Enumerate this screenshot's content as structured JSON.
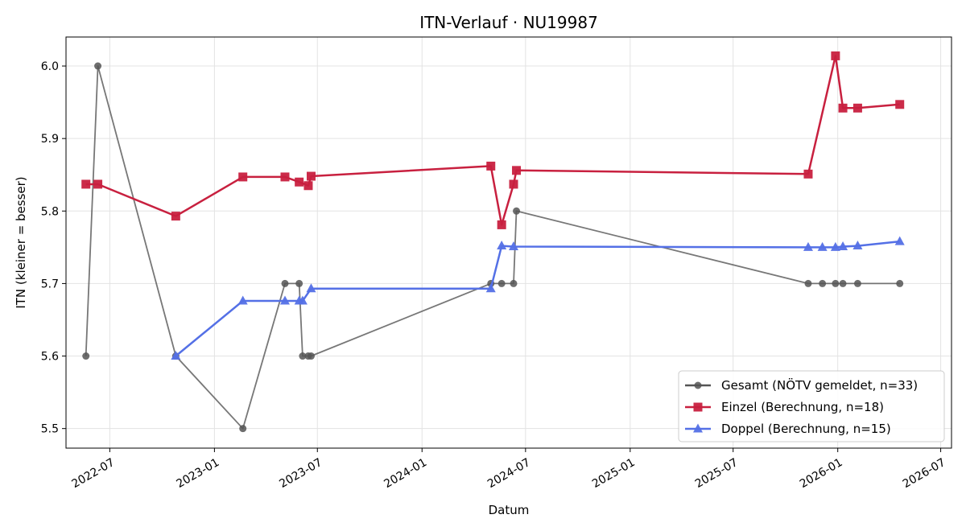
{
  "chart_data": {
    "type": "line",
    "title": "ITN-Verlauf · NU19987",
    "xlabel": "Datum",
    "ylabel": "ITN  (kleiner = besser)",
    "x_is_date": true,
    "xlim": [
      "2022-04-15",
      "2026-07-20"
    ],
    "ylim": [
      5.473,
      6.04
    ],
    "x_ticks": [
      "2022-07-01",
      "2023-01-01",
      "2023-07-01",
      "2024-01-01",
      "2024-07-01",
      "2025-01-01",
      "2025-07-01",
      "2026-01-01",
      "2026-07-01"
    ],
    "x_tick_labels": [
      "2022-07",
      "2023-01",
      "2023-07",
      "2024-01",
      "2024-07",
      "2025-01",
      "2025-07",
      "2026-01",
      "2026-07"
    ],
    "y_ticks": [
      5.5,
      5.6,
      5.7,
      5.8,
      5.9,
      6.0
    ],
    "y_tick_labels": [
      "5.5",
      "5.6",
      "5.7",
      "5.8",
      "5.9",
      "6.0"
    ],
    "grid": true,
    "legend_position": "lower-right",
    "series": [
      {
        "name": "Gesamt (NÖTV gemeldet, n=33)",
        "color": "#555555",
        "marker": "circle",
        "points": [
          {
            "x": "2022-05-20",
            "y": 5.6
          },
          {
            "x": "2022-06-10",
            "y": 6.0
          },
          {
            "x": "2022-10-25",
            "y": 5.6
          },
          {
            "x": "2023-02-20",
            "y": 5.5
          },
          {
            "x": "2023-05-05",
            "y": 5.7
          },
          {
            "x": "2023-05-30",
            "y": 5.7
          },
          {
            "x": "2023-06-05",
            "y": 5.6
          },
          {
            "x": "2023-06-15",
            "y": 5.6
          },
          {
            "x": "2023-06-20",
            "y": 5.6
          },
          {
            "x": "2024-05-01",
            "y": 5.7
          },
          {
            "x": "2024-05-20",
            "y": 5.7
          },
          {
            "x": "2024-06-10",
            "y": 5.7
          },
          {
            "x": "2024-06-15",
            "y": 5.8
          },
          {
            "x": "2025-11-10",
            "y": 5.7
          },
          {
            "x": "2025-12-05",
            "y": 5.7
          },
          {
            "x": "2025-12-28",
            "y": 5.7
          },
          {
            "x": "2026-01-10",
            "y": 5.7
          },
          {
            "x": "2026-02-05",
            "y": 5.7
          },
          {
            "x": "2026-04-20",
            "y": 5.7
          }
        ]
      },
      {
        "name": "Einzel (Berechnung, n=18)",
        "color": "#c8203f",
        "marker": "square",
        "points": [
          {
            "x": "2022-05-20",
            "y": 5.837
          },
          {
            "x": "2022-06-10",
            "y": 5.837
          },
          {
            "x": "2022-10-25",
            "y": 5.793
          },
          {
            "x": "2023-02-20",
            "y": 5.847
          },
          {
            "x": "2023-05-05",
            "y": 5.847
          },
          {
            "x": "2023-05-30",
            "y": 5.84
          },
          {
            "x": "2023-06-15",
            "y": 5.835
          },
          {
            "x": "2023-06-20",
            "y": 5.848
          },
          {
            "x": "2024-05-01",
            "y": 5.862
          },
          {
            "x": "2024-05-20",
            "y": 5.781
          },
          {
            "x": "2024-06-10",
            "y": 5.837
          },
          {
            "x": "2024-06-15",
            "y": 5.856
          },
          {
            "x": "2025-11-10",
            "y": 5.851
          },
          {
            "x": "2025-12-28",
            "y": 6.014
          },
          {
            "x": "2026-01-10",
            "y": 5.942
          },
          {
            "x": "2026-02-05",
            "y": 5.942
          },
          {
            "x": "2026-04-20",
            "y": 5.947
          }
        ]
      },
      {
        "name": "Doppel (Berechnung, n=15)",
        "color": "#5470e6",
        "marker": "triangle",
        "points": [
          {
            "x": "2022-10-25",
            "y": 5.6
          },
          {
            "x": "2023-02-20",
            "y": 5.676
          },
          {
            "x": "2023-05-05",
            "y": 5.676
          },
          {
            "x": "2023-05-30",
            "y": 5.676
          },
          {
            "x": "2023-06-05",
            "y": 5.676
          },
          {
            "x": "2023-06-20",
            "y": 5.693
          },
          {
            "x": "2024-05-01",
            "y": 5.693
          },
          {
            "x": "2024-05-20",
            "y": 5.752
          },
          {
            "x": "2024-06-10",
            "y": 5.751
          },
          {
            "x": "2025-11-10",
            "y": 5.75
          },
          {
            "x": "2025-12-05",
            "y": 5.75
          },
          {
            "x": "2025-12-28",
            "y": 5.75
          },
          {
            "x": "2026-01-10",
            "y": 5.751
          },
          {
            "x": "2026-02-05",
            "y": 5.752
          },
          {
            "x": "2026-04-20",
            "y": 5.758
          }
        ]
      }
    ]
  }
}
